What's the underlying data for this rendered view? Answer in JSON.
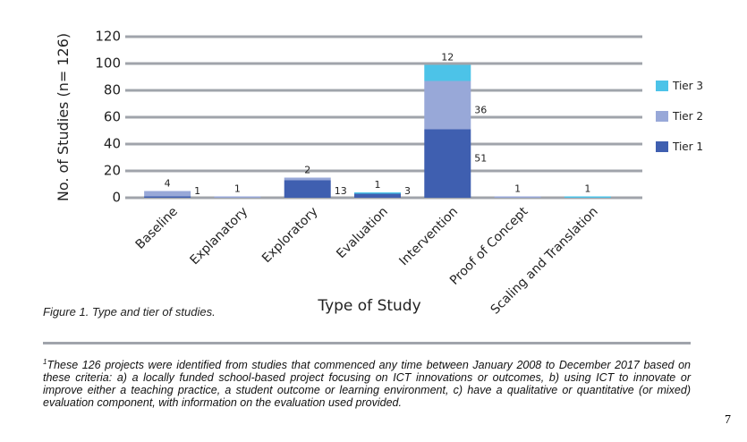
{
  "chart_data": {
    "type": "stacked_bar",
    "categories": [
      "Baseline",
      "Explanatory",
      "Exploratory",
      "Evaluation",
      "Intervention",
      "Proof of Concept",
      "Scaling and Translation"
    ],
    "series": [
      {
        "name": "Tier 1",
        "color": "#3f5fb0",
        "values": [
          1,
          null,
          13,
          3,
          51,
          null,
          null
        ]
      },
      {
        "name": "Tier 2",
        "color": "#98a8d8",
        "values": [
          4,
          1,
          2,
          null,
          36,
          1,
          null
        ]
      },
      {
        "name": "Tier 3",
        "color": "#4cc3e8",
        "values": [
          null,
          null,
          null,
          1,
          12,
          null,
          1
        ]
      }
    ],
    "x_label": "Type of Study",
    "y_label": "No. of Studies (n= 126)",
    "ylim": [
      0,
      120
    ],
    "yticks": [
      0,
      20,
      40,
      60,
      80,
      100,
      120
    ],
    "grid": true,
    "legend": "right"
  },
  "caption": "Figure 1. Type and tier of studies.",
  "footnote": {
    "marker": "1",
    "text": "These 126 projects were identified from studies that commenced any time between January 2008 to December 2017 based on these criteria: a) a locally funded school-based project focusing on ICT innovations or outcomes, b) using ICT to innovate or improve either a teaching practice, a student outcome or learning environment, c) have a qualitative or quantitative (or mixed) evaluation component, with information on the evaluation used provided."
  },
  "page_number": "7"
}
